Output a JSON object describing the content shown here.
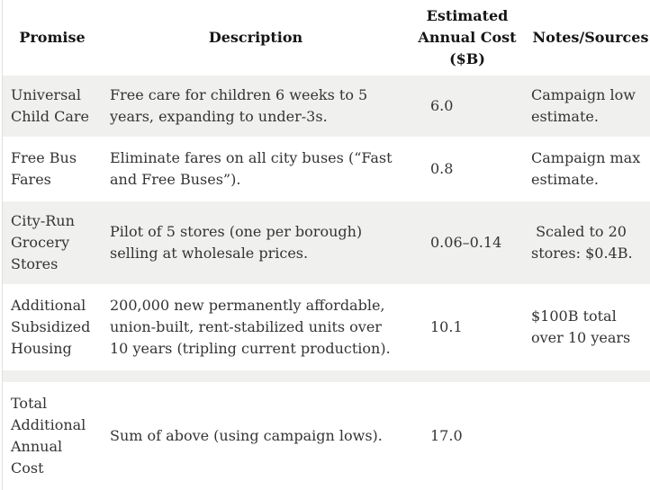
{
  "table": {
    "columns": {
      "promise": "Promise",
      "description": "Description",
      "cost": "Estimated Annual Cost ($B)",
      "notes": "Notes/Sources"
    },
    "rows": [
      {
        "promise": "Universal Child Care",
        "description": "Free care for children 6 weeks to 5 years, expanding to under-3s.",
        "cost": "6.0",
        "notes": "Campaign low estimate."
      },
      {
        "promise": "Free Bus Fares",
        "description": "Eliminate fares on all city buses (“Fast and Free Buses”).",
        "cost": "0.8",
        "notes": "Campaign max estimate."
      },
      {
        "promise": "City-Run Grocery Stores",
        "description": "Pilot of 5 stores (one per borough) selling at wholesale prices.",
        "cost": "0.06–0.14",
        "notes": " Scaled to 20 stores: $0.4B."
      },
      {
        "promise": "Additional Subsidized Housing",
        "description": "200,000 new permanently affordable, union-built, rent-stabilized units over 10 years (tripling current production).",
        "cost": "10.1",
        "notes": "$100B total over 10 years"
      },
      {
        "promise": "",
        "description": "",
        "cost": "",
        "notes": ""
      },
      {
        "promise": "Total Additional Annual Cost",
        "description": "Sum of above (using campaign lows).",
        "cost": "17.0",
        "notes": ""
      }
    ],
    "colors": {
      "row_shade": "#f0f0ee",
      "row_background": "#ffffff",
      "table_border": "#e0e0de",
      "header_text": "#151515",
      "body_text": "#343434"
    }
  }
}
